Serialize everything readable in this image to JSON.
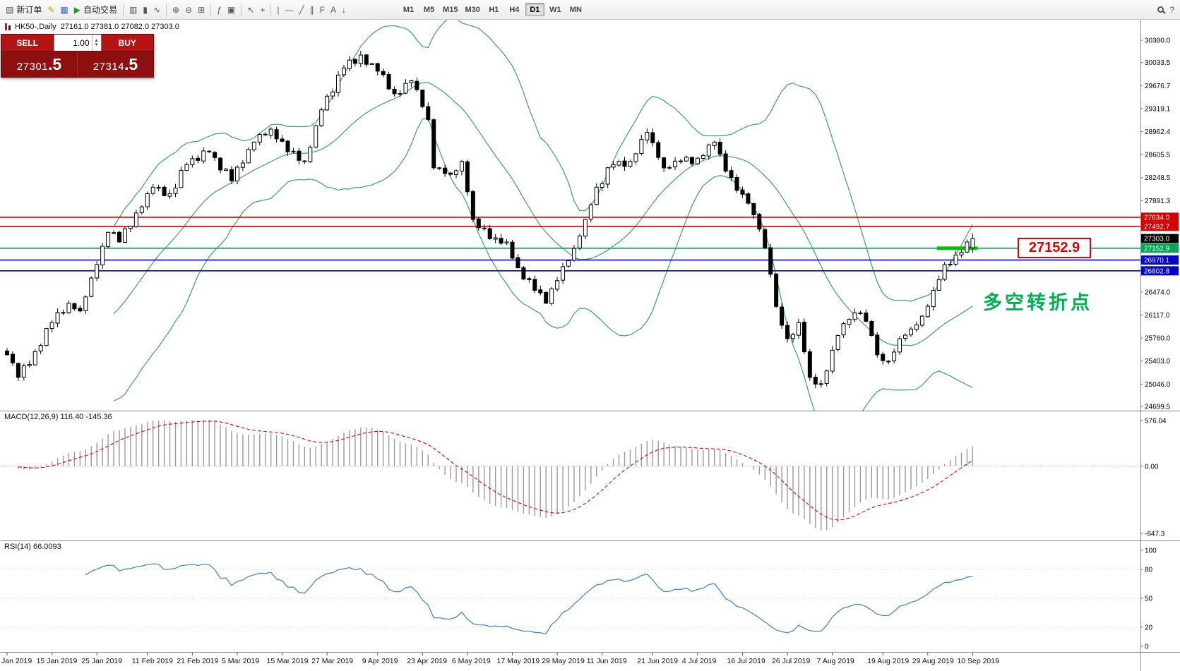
{
  "colors": {
    "level_red": "#d40000",
    "level_green": "#00a651",
    "level_blue": "#0000cc",
    "band_green": "#3aa35f",
    "rsi_blue": "#4a86c8",
    "macd_signal_red": "#e00000",
    "macd_hist_gray": "#9a9a9a",
    "sell_buy_red": "#b51414",
    "price_panel_dark_red": "#8d0f0f",
    "annotation_green": "#00b050",
    "annotation_red": "#e00000",
    "current_price_black": "#000000"
  },
  "toolbar": {
    "new_order_label": "新订单",
    "autotrading_label": "自动交易",
    "left_icons": [
      {
        "name": "new-order-icon",
        "glyph": "▤"
      },
      {
        "name": "metaeditor-icon",
        "glyph": "✎"
      },
      {
        "name": "data-window-icon",
        "glyph": "▦"
      },
      {
        "name": "autotrading-play-icon",
        "glyph": "▶"
      }
    ],
    "chart_icons": [
      {
        "name": "bar-chart-icon",
        "glyph": "▥"
      },
      {
        "name": "candlestick-chart-icon",
        "glyph": "▮"
      },
      {
        "name": "line-chart-icon",
        "glyph": "∿"
      },
      {
        "name": "zoom-in-icon",
        "glyph": "⊕"
      },
      {
        "name": "zoom-out-icon",
        "glyph": "⊖"
      },
      {
        "name": "tile-windows-icon",
        "glyph": "⊞"
      },
      {
        "name": "indicators-icon",
        "glyph": "ƒ"
      },
      {
        "name": "objects-list-icon",
        "glyph": "▣"
      },
      {
        "name": "cursor-icon",
        "glyph": "↖"
      },
      {
        "name": "crosshair-icon",
        "glyph": "+"
      },
      {
        "name": "vertical-line-icon",
        "glyph": "|"
      },
      {
        "name": "horizontal-line-icon",
        "glyph": "—"
      },
      {
        "name": "trendline-icon",
        "glyph": "╱"
      },
      {
        "name": "channel-icon",
        "glyph": "∥"
      },
      {
        "name": "fibonacci-icon",
        "glyph": "F"
      },
      {
        "name": "text-icon",
        "glyph": "A"
      },
      {
        "name": "arrows-icon",
        "glyph": "↓"
      }
    ],
    "timeframes": [
      "M1",
      "M5",
      "M15",
      "M30",
      "H1",
      "H4",
      "D1",
      "W1",
      "MN"
    ],
    "active_timeframe": "D1",
    "right_icons": [
      {
        "name": "search-icon",
        "glyph": ""
      },
      {
        "name": "help-icon",
        "glyph": "?"
      }
    ]
  },
  "chart_header": {
    "symbol_period": "HK50-,Daily",
    "ohlc": "27161.0 27381.0 27082.0 27303.0"
  },
  "trade_panel": {
    "sell_label": "SELL",
    "buy_label": "BUY",
    "volume": "1.00",
    "spinner_up_icon": "▴",
    "spinner_down_icon": "▾",
    "sell_price_main": "27301",
    "sell_price_frac": ".5",
    "buy_price_main": "27314",
    "buy_price_frac": ".5"
  },
  "annotations": {
    "price_callout": "27152.9",
    "note": "多空转折点"
  },
  "price_axis": {
    "ticks": [
      "30380.0",
      "30033.5",
      "29676.7",
      "29319.1",
      "28962.4",
      "28605.5",
      "28248.5",
      "27891.3",
      "26474.0",
      "26117.0",
      "25760.0",
      "25403.0",
      "25046.0",
      "24699.5"
    ],
    "tags": [
      {
        "value": "27634.0",
        "price": 27634.0,
        "color": "#d40000"
      },
      {
        "value": "27492.7",
        "price": 27492.7,
        "color": "#d40000"
      },
      {
        "value": "27303.0",
        "price": 27303.0,
        "color": "#000000"
      },
      {
        "value": "27152.9",
        "price": 27152.9,
        "color": "#00a651"
      },
      {
        "value": "26970.1",
        "price": 26970.1,
        "color": "#0000cc"
      },
      {
        "value": "26802.8",
        "price": 26802.8,
        "color": "#0000cc"
      }
    ]
  },
  "macd_panel": {
    "label": "MACD(12,26,9) 116.40 -145.36",
    "ticks": [
      {
        "value": "576.04",
        "v": 576.04
      },
      {
        "value": "0.00",
        "v": 0
      },
      {
        "value": "-847.3",
        "v": -847.3
      }
    ]
  },
  "rsi_panel": {
    "label": "RSI(14) 66.0093",
    "ticks": [
      {
        "value": "100",
        "v": 100
      },
      {
        "value": "80",
        "v": 80
      },
      {
        "value": "50",
        "v": 50
      },
      {
        "value": "20",
        "v": 20
      },
      {
        "value": "0",
        "v": 0
      }
    ]
  },
  "time_axis": [
    "Jan 2019",
    "15 Jan 2019",
    "25 Jan 2019",
    "11 Feb 2019",
    "21 Feb 2019",
    "5 Mar 2019",
    "15 Mar 2019",
    "27 Mar 2019",
    "9 Apr 2019",
    "23 Apr 2019",
    "6 May 2019",
    "17 May 2019",
    "29 May 2019",
    "11 Jun 2019",
    "21 Jun 2019",
    "4 Jul 2019",
    "16 Jul 2019",
    "26 Jul 2019",
    "7 Aug 2019",
    "19 Aug 2019",
    "29 Aug 2019",
    "10 Sep 2019"
  ],
  "chart_data": {
    "type": "candlestick",
    "symbol": "HK50",
    "timeframe": "Daily",
    "last_bar_ohlc": {
      "open": 27161.0,
      "high": 27381.0,
      "low": 27082.0,
      "close": 27303.0
    },
    "bars": 173,
    "y_range": [
      24699.5,
      30380.0
    ],
    "close_waypoints": [
      [
        0,
        25500
      ],
      [
        2,
        25150
      ],
      [
        5,
        25550
      ],
      [
        8,
        26000
      ],
      [
        11,
        26300
      ],
      [
        13,
        26180
      ],
      [
        16,
        26900
      ],
      [
        18,
        27400
      ],
      [
        20,
        27250
      ],
      [
        23,
        27700
      ],
      [
        26,
        28100
      ],
      [
        29,
        28000
      ],
      [
        32,
        28450
      ],
      [
        36,
        28650
      ],
      [
        40,
        28200
      ],
      [
        44,
        28800
      ],
      [
        47,
        29000
      ],
      [
        50,
        28650
      ],
      [
        53,
        28500
      ],
      [
        56,
        29300
      ],
      [
        60,
        29950
      ],
      [
        63,
        30150
      ],
      [
        66,
        29900
      ],
      [
        69,
        29550
      ],
      [
        72,
        29750
      ],
      [
        74,
        29350
      ],
      [
        75,
        29150
      ],
      [
        76,
        28400
      ],
      [
        79,
        28300
      ],
      [
        81,
        28500
      ],
      [
        83,
        27600
      ],
      [
        86,
        27300
      ],
      [
        89,
        27250
      ],
      [
        91,
        26850
      ],
      [
        94,
        26500
      ],
      [
        96,
        26300
      ],
      [
        98,
        26650
      ],
      [
        101,
        27150
      ],
      [
        103,
        27600
      ],
      [
        105,
        28100
      ],
      [
        108,
        28450
      ],
      [
        111,
        28500
      ],
      [
        114,
        28950
      ],
      [
        117,
        28400
      ],
      [
        120,
        28500
      ],
      [
        123,
        28550
      ],
      [
        126,
        28800
      ],
      [
        128,
        28350
      ],
      [
        130,
        28050
      ],
      [
        132,
        27850
      ],
      [
        134,
        27450
      ],
      [
        136,
        26750
      ],
      [
        137,
        26250
      ],
      [
        139,
        25750
      ],
      [
        141,
        26000
      ],
      [
        143,
        25150
      ],
      [
        145,
        25050
      ],
      [
        146,
        25250
      ],
      [
        148,
        25800
      ],
      [
        150,
        26050
      ],
      [
        152,
        26150
      ],
      [
        154,
        25800
      ],
      [
        155,
        25500
      ],
      [
        157,
        25400
      ],
      [
        159,
        25750
      ],
      [
        161,
        25900
      ],
      [
        163,
        26100
      ],
      [
        165,
        26500
      ],
      [
        167,
        26900
      ],
      [
        169,
        27050
      ],
      [
        171,
        27250
      ],
      [
        172,
        27303
      ]
    ],
    "horizontal_levels": [
      {
        "price": 27634.0,
        "color": "#d40000"
      },
      {
        "price": 27492.7,
        "color": "#d40000"
      },
      {
        "price": 27152.9,
        "color": "#00a651",
        "highlight_segment": [
          166,
          172
        ]
      },
      {
        "price": 26970.1,
        "color": "#0000cc"
      },
      {
        "price": 26802.8,
        "color": "#0000cc"
      }
    ],
    "current_price": 27303.0,
    "indicators": {
      "bollinger_bands": {
        "period": 20,
        "deviation": 2
      },
      "macd": {
        "fast": 12,
        "slow": 26,
        "signal": 9,
        "display_values": [
          116.4,
          -145.36
        ],
        "y_range": [
          -847.3,
          576.04
        ]
      },
      "rsi": {
        "period": 14,
        "value": 66.0093,
        "y_range": [
          0,
          100
        ]
      }
    }
  }
}
